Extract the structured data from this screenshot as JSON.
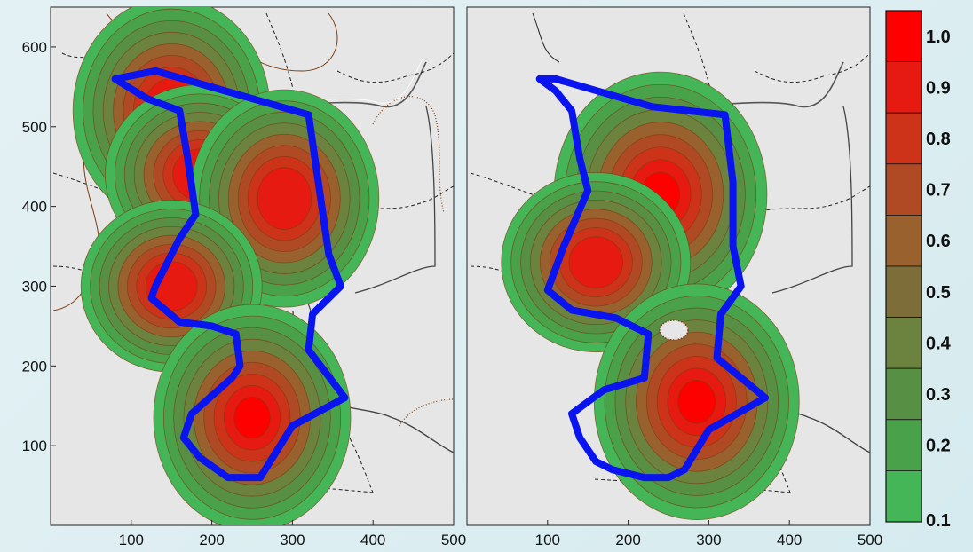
{
  "chart_data": [
    {
      "type": "heatmap",
      "panel": "left",
      "xlim": [
        0,
        500
      ],
      "ylim": [
        0,
        650
      ],
      "x_ticks": [
        "100",
        "200",
        "300",
        "400",
        "500"
      ],
      "y_ticks": [
        "100",
        "200",
        "300",
        "400",
        "500",
        "600"
      ],
      "grid": false,
      "hotspots": [
        {
          "x": 150,
          "y": 520,
          "value": 0.9
        },
        {
          "x": 185,
          "y": 440,
          "value": 0.85
        },
        {
          "x": 290,
          "y": 410,
          "value": 0.85
        },
        {
          "x": 150,
          "y": 300,
          "value": 0.8
        },
        {
          "x": 250,
          "y": 135,
          "value": 0.9
        }
      ],
      "boundary": [
        [
          80,
          560
        ],
        [
          130,
          570
        ],
        [
          320,
          515
        ],
        [
          345,
          340
        ],
        [
          360,
          300
        ],
        [
          325,
          265
        ],
        [
          320,
          220
        ],
        [
          365,
          160
        ],
        [
          300,
          125
        ],
        [
          260,
          60
        ],
        [
          220,
          60
        ],
        [
          185,
          85
        ],
        [
          165,
          110
        ],
        [
          175,
          140
        ],
        [
          225,
          185
        ],
        [
          235,
          200
        ],
        [
          230,
          240
        ],
        [
          200,
          250
        ],
        [
          160,
          255
        ],
        [
          125,
          285
        ],
        [
          130,
          300
        ],
        [
          160,
          360
        ],
        [
          180,
          390
        ],
        [
          170,
          460
        ],
        [
          160,
          520
        ],
        [
          120,
          535
        ],
        [
          80,
          560
        ]
      ]
    },
    {
      "type": "heatmap",
      "panel": "right",
      "xlim": [
        0,
        500
      ],
      "ylim": [
        0,
        650
      ],
      "x_ticks": [
        "100",
        "200",
        "300",
        "400",
        "500"
      ],
      "grid": false,
      "hotspots": [
        {
          "x": 240,
          "y": 415,
          "value": 1.0
        },
        {
          "x": 160,
          "y": 330,
          "value": 0.85
        },
        {
          "x": 285,
          "y": 155,
          "value": 0.95
        }
      ],
      "boundary": [
        [
          90,
          560
        ],
        [
          110,
          560
        ],
        [
          230,
          525
        ],
        [
          320,
          515
        ],
        [
          330,
          430
        ],
        [
          330,
          350
        ],
        [
          340,
          300
        ],
        [
          315,
          265
        ],
        [
          310,
          210
        ],
        [
          370,
          160
        ],
        [
          300,
          120
        ],
        [
          270,
          70
        ],
        [
          250,
          60
        ],
        [
          220,
          60
        ],
        [
          180,
          70
        ],
        [
          160,
          80
        ],
        [
          140,
          110
        ],
        [
          130,
          140
        ],
        [
          170,
          170
        ],
        [
          220,
          185
        ],
        [
          225,
          240
        ],
        [
          185,
          260
        ],
        [
          130,
          270
        ],
        [
          100,
          295
        ],
        [
          120,
          350
        ],
        [
          150,
          420
        ],
        [
          140,
          460
        ],
        [
          130,
          520
        ],
        [
          110,
          545
        ],
        [
          90,
          560
        ]
      ]
    }
  ],
  "colorbar": {
    "labels": [
      "1.0",
      "0.9",
      "0.8",
      "0.7",
      "0.6",
      "0.5",
      "0.4",
      "0.3",
      "0.2",
      "0.1"
    ],
    "colors": [
      "#ff0000",
      "#e61a10",
      "#cc3319",
      "#b04a24",
      "#99612e",
      "#7d6e39",
      "#6b833f",
      "#578f45",
      "#49a24a",
      "#44b657"
    ]
  },
  "colors": {
    "boundary": "#0a14ee",
    "map_background": "#e6e6e6",
    "topo_line": "#7a3b10"
  }
}
